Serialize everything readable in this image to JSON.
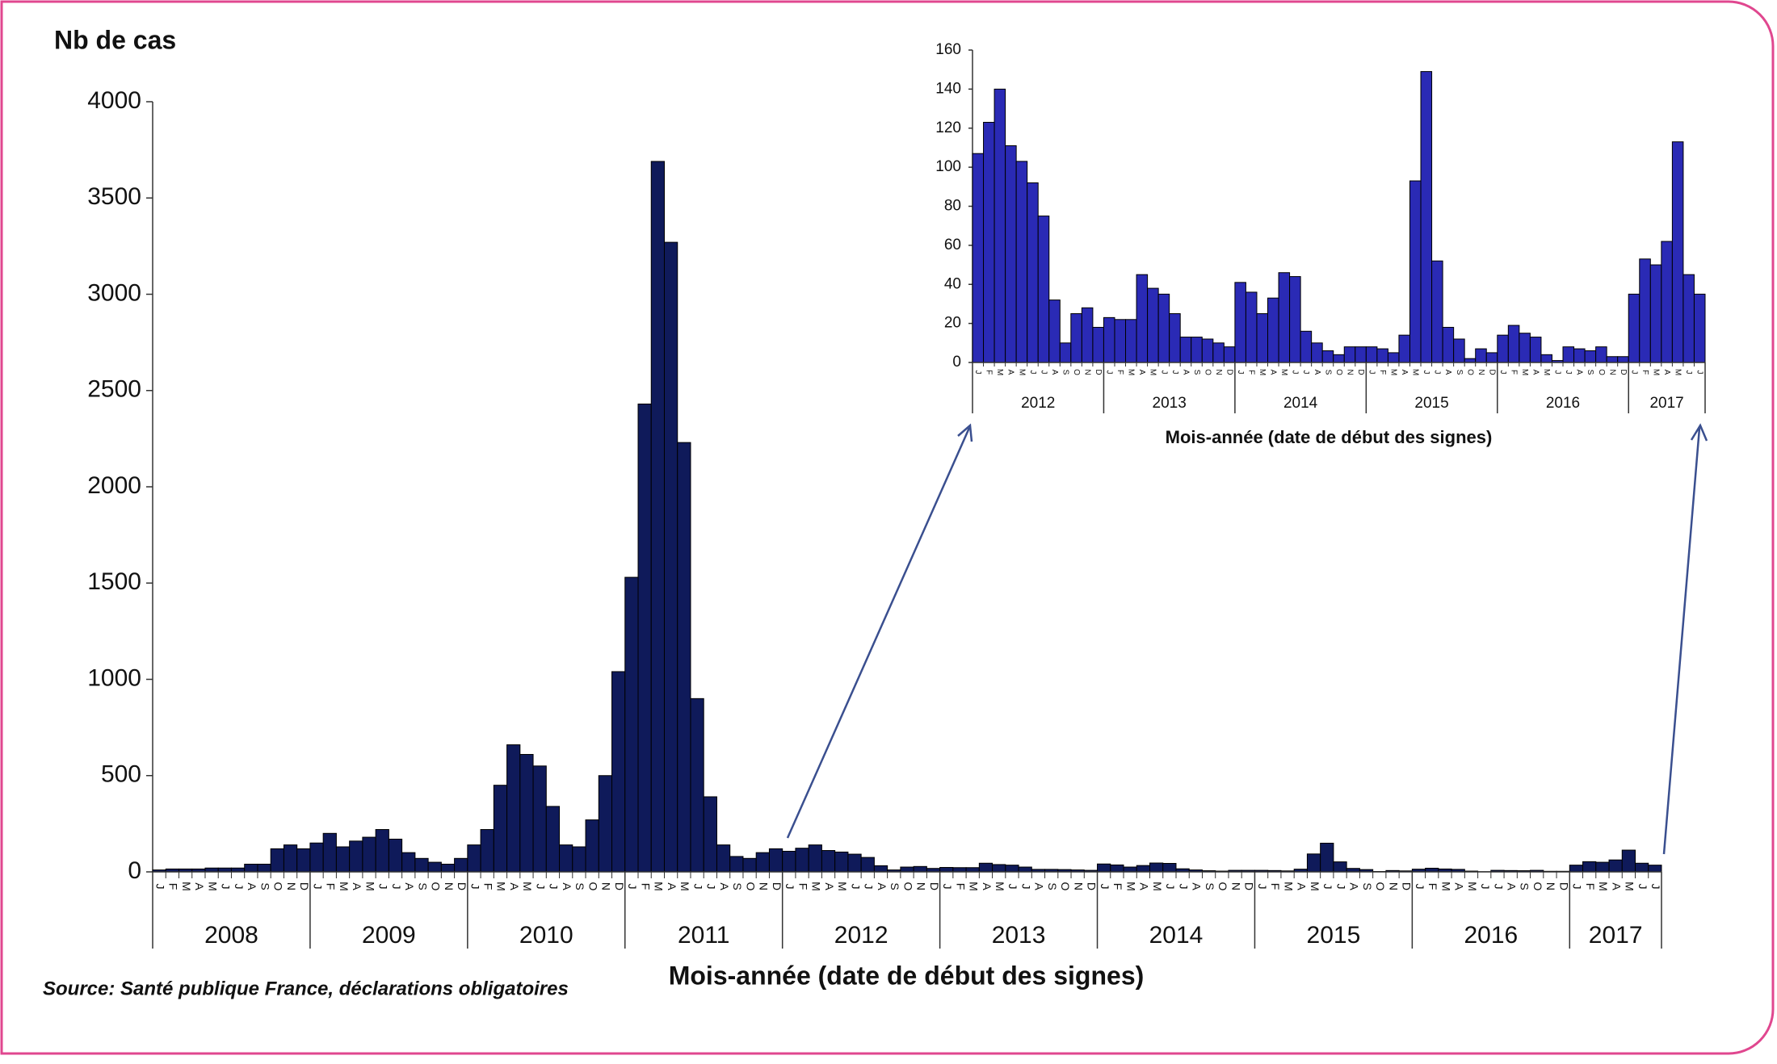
{
  "chart_data": [
    {
      "type": "bar",
      "ylabel": "Nb de cas",
      "xlabel": "Mois-année (date de début des signes)",
      "note": "Source: Santé publique France, déclarations obligatoires",
      "color": "#0f1a5a",
      "edgecolor": "#000000",
      "ylim": [
        0,
        4000
      ],
      "yticks": [
        0,
        500,
        1000,
        1500,
        2000,
        2500,
        3000,
        3500,
        4000
      ],
      "years": [
        "2008",
        "2009",
        "2010",
        "2011",
        "2012",
        "2013",
        "2014",
        "2015",
        "2016",
        "2017"
      ],
      "categories": [
        "J",
        "F",
        "M",
        "A",
        "M",
        "J",
        "J",
        "A",
        "S",
        "O",
        "N",
        "D",
        "J",
        "F",
        "M",
        "A",
        "M",
        "J",
        "J",
        "A",
        "S",
        "O",
        "N",
        "D",
        "J",
        "F",
        "M",
        "A",
        "M",
        "J",
        "J",
        "A",
        "S",
        "O",
        "N",
        "D",
        "J",
        "F",
        "M",
        "A",
        "M",
        "J",
        "J",
        "A",
        "S",
        "O",
        "N",
        "D",
        "J",
        "F",
        "M",
        "A",
        "M",
        "J",
        "J",
        "A",
        "S",
        "O",
        "N",
        "D",
        "J",
        "F",
        "M",
        "A",
        "M",
        "J",
        "J",
        "A",
        "S",
        "O",
        "N",
        "D",
        "J",
        "F",
        "M",
        "A",
        "M",
        "J",
        "J",
        "A",
        "S",
        "O",
        "N",
        "D",
        "J",
        "F",
        "M",
        "A",
        "M",
        "J",
        "J",
        "A",
        "S",
        "O",
        "N",
        "D",
        "J",
        "F",
        "M",
        "A",
        "M",
        "J",
        "J",
        "A",
        "S",
        "O",
        "N",
        "D",
        "J",
        "F",
        "M",
        "A",
        "M",
        "J",
        "J"
      ],
      "values": [
        10,
        15,
        15,
        15,
        20,
        20,
        20,
        40,
        40,
        120,
        140,
        120,
        150,
        200,
        130,
        160,
        180,
        220,
        170,
        100,
        70,
        50,
        40,
        70,
        140,
        220,
        450,
        660,
        610,
        550,
        340,
        140,
        130,
        270,
        500,
        1040,
        1530,
        2430,
        3690,
        3270,
        2230,
        900,
        390,
        140,
        80,
        70,
        100,
        120,
        107,
        123,
        140,
        111,
        103,
        92,
        75,
        32,
        10,
        25,
        28,
        18,
        23,
        22,
        22,
        45,
        38,
        35,
        25,
        13,
        13,
        12,
        10,
        8,
        41,
        36,
        25,
        33,
        46,
        44,
        16,
        10,
        6,
        4,
        8,
        8,
        8,
        7,
        5,
        14,
        93,
        149,
        52,
        18,
        12,
        2,
        7,
        5,
        14,
        19,
        15,
        13,
        4,
        1,
        8,
        7,
        6,
        8,
        3,
        3,
        35,
        53,
        50,
        62,
        113,
        45,
        35
      ]
    },
    {
      "type": "bar",
      "xlabel": "Mois-année (date de début des signes)",
      "color": "#2a2ab5",
      "edgecolor": "#000000",
      "ylim": [
        0,
        160
      ],
      "yticks": [
        0,
        20,
        40,
        60,
        80,
        100,
        120,
        140,
        160
      ],
      "years": [
        "2012",
        "2013",
        "2014",
        "2015",
        "2016",
        "2017"
      ],
      "categories": [
        "J",
        "F",
        "M",
        "A",
        "M",
        "J",
        "J",
        "A",
        "S",
        "O",
        "N",
        "D",
        "J",
        "F",
        "M",
        "A",
        "M",
        "J",
        "J",
        "A",
        "S",
        "O",
        "N",
        "D",
        "J",
        "F",
        "M",
        "A",
        "M",
        "J",
        "J",
        "A",
        "S",
        "O",
        "N",
        "D",
        "J",
        "F",
        "M",
        "A",
        "M",
        "J",
        "J",
        "A",
        "S",
        "O",
        "N",
        "D",
        "J",
        "F",
        "M",
        "A",
        "M",
        "J",
        "J",
        "A",
        "S",
        "O",
        "N",
        "D",
        "J",
        "F",
        "M",
        "A",
        "M",
        "J",
        "J"
      ],
      "values": [
        107,
        123,
        140,
        111,
        103,
        92,
        75,
        32,
        10,
        25,
        28,
        18,
        23,
        22,
        22,
        45,
        38,
        35,
        25,
        13,
        13,
        12,
        10,
        8,
        41,
        36,
        25,
        33,
        46,
        44,
        16,
        10,
        6,
        4,
        8,
        8,
        8,
        7,
        5,
        14,
        93,
        149,
        52,
        18,
        12,
        2,
        7,
        5,
        14,
        19,
        15,
        13,
        4,
        1,
        8,
        7,
        6,
        8,
        3,
        3,
        35,
        53,
        50,
        62,
        113,
        45,
        35
      ]
    }
  ]
}
